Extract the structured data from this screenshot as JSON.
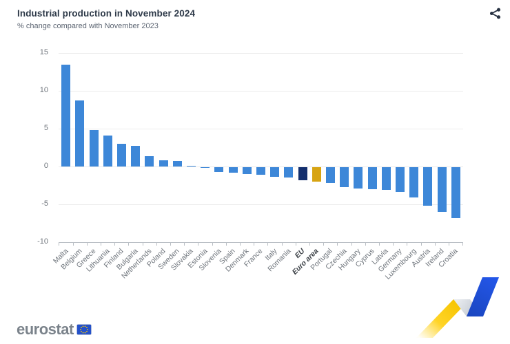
{
  "header": {
    "share_icon": "share-alt-icon"
  },
  "footer": {
    "logo_text": "eurostat",
    "flag_icon": "eu-flag-icon"
  },
  "colors": {
    "bar_default": "#3d87d8",
    "bar_eu": "#132f6e",
    "bar_euro_area": "#d7a413",
    "title_text": "#2d3948",
    "ribbon_yellow": "#ffcc00",
    "ribbon_blue": "#1e4fd6",
    "flag_blue": "#2451c9",
    "flag_star_yellow": "#ffcc00"
  },
  "chart_data": {
    "type": "bar",
    "title": "Industrial production in November 2024",
    "subtitle": "% change compared with November 2023",
    "xlabel": "",
    "ylabel": "",
    "grid": true,
    "legend": false,
    "ylim": [
      -10,
      15
    ],
    "yticks": [
      15,
      10,
      5,
      0,
      -5,
      -10
    ],
    "categories": [
      "Malta",
      "Belgium",
      "Greece",
      "Lithuania",
      "Finland",
      "Bulgaria",
      "Netherlands",
      "Poland",
      "Sweden",
      "Slovakia",
      "Estonia",
      "Slovenia",
      "Spain",
      "Denmark",
      "France",
      "Italy",
      "Romania",
      "EU",
      "Euro area",
      "Portugal",
      "Czechia",
      "Hungary",
      "Cyprus",
      "Latvia",
      "Germany",
      "Luxembourg",
      "Austria",
      "Ireland",
      "Croatia"
    ],
    "values": [
      13.5,
      8.7,
      4.8,
      4.1,
      3.0,
      2.7,
      1.4,
      0.8,
      0.7,
      0.1,
      -0.1,
      -0.6,
      -0.7,
      -0.9,
      -1.0,
      -1.3,
      -1.4,
      -1.7,
      -1.9,
      -2.1,
      -2.6,
      -2.8,
      -2.9,
      -3.0,
      -3.3,
      -4.0,
      -5.1,
      -5.9,
      -6.7
    ],
    "bold_categories": [
      "EU",
      "Euro area"
    ],
    "eu_label": "EU",
    "euro_area_label": "Euro area",
    "bar_color_default": "#3d87d8",
    "bar_color_eu": "#132f6e",
    "bar_color_euro_area": "#d7a413"
  }
}
